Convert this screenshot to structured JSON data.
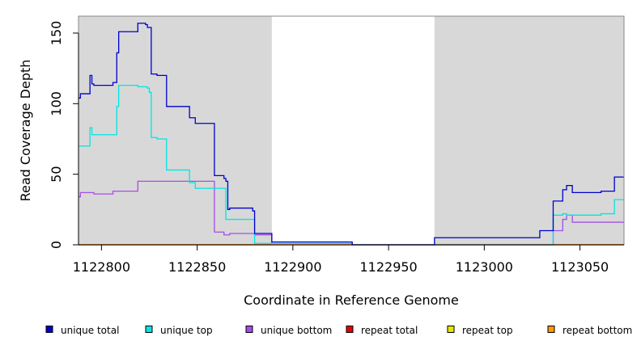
{
  "chart_data": {
    "type": "line",
    "step": true,
    "title": "",
    "xlabel": "Coordinate in Reference Genome",
    "ylabel": "Read Coverage Depth",
    "xlim": [
      1122788,
      1123073
    ],
    "ylim": [
      0,
      162
    ],
    "x_ticks": [
      1122800,
      1122850,
      1122900,
      1122950,
      1123000,
      1123050
    ],
    "x_tick_labels": [
      "1122800",
      "1122850",
      "1122900",
      "1122950",
      "1123000",
      "1123050"
    ],
    "y_ticks": [
      0,
      50,
      100,
      150
    ],
    "y_tick_labels": [
      "0",
      "50",
      "100",
      "150"
    ],
    "grid": false,
    "background_color": "#d8d8d8",
    "excluded_regions": [
      [
        1122788,
        1122889
      ],
      [
        1122974,
        1123073
      ]
    ],
    "legend_position": "bottom",
    "series": [
      {
        "name": "unique total",
        "color": "#0000cc",
        "points": [
          [
            1122788,
            104
          ],
          [
            1122789,
            107
          ],
          [
            1122794,
            120
          ],
          [
            1122795,
            114
          ],
          [
            1122796,
            113
          ],
          [
            1122806,
            115
          ],
          [
            1122808,
            136
          ],
          [
            1122809,
            151
          ],
          [
            1122819,
            157
          ],
          [
            1122823,
            156
          ],
          [
            1122824,
            154
          ],
          [
            1122826,
            121
          ],
          [
            1122829,
            120
          ],
          [
            1122834,
            98
          ],
          [
            1122846,
            90
          ],
          [
            1122849,
            86
          ],
          [
            1122859,
            49
          ],
          [
            1122864,
            47
          ],
          [
            1122865,
            45
          ],
          [
            1122866,
            25
          ],
          [
            1122867,
            26
          ],
          [
            1122879,
            24
          ],
          [
            1122880,
            8
          ],
          [
            1122889,
            2
          ],
          [
            1122931,
            0
          ],
          [
            1122974,
            5
          ],
          [
            1123029,
            10
          ],
          [
            1123036,
            31
          ],
          [
            1123041,
            39
          ],
          [
            1123043,
            42
          ],
          [
            1123046,
            37
          ],
          [
            1123061,
            38
          ],
          [
            1123068,
            48
          ],
          [
            1123073,
            48
          ]
        ]
      },
      {
        "name": "unique top",
        "color": "#00e5e5",
        "points": [
          [
            1122788,
            70
          ],
          [
            1122794,
            83
          ],
          [
            1122795,
            78
          ],
          [
            1122808,
            98
          ],
          [
            1122809,
            113
          ],
          [
            1122819,
            112
          ],
          [
            1122824,
            111
          ],
          [
            1122825,
            108
          ],
          [
            1122826,
            76
          ],
          [
            1122829,
            75
          ],
          [
            1122834,
            53
          ],
          [
            1122846,
            44
          ],
          [
            1122849,
            40
          ],
          [
            1122865,
            18
          ],
          [
            1122880,
            1
          ],
          [
            1122931,
            0
          ],
          [
            1123036,
            21
          ],
          [
            1123041,
            22
          ],
          [
            1123043,
            21
          ],
          [
            1123061,
            22
          ],
          [
            1123068,
            32
          ],
          [
            1123073,
            32
          ]
        ]
      },
      {
        "name": "unique bottom",
        "color": "#a64de6",
        "points": [
          [
            1122788,
            34
          ],
          [
            1122789,
            37
          ],
          [
            1122796,
            36
          ],
          [
            1122806,
            38
          ],
          [
            1122819,
            45
          ],
          [
            1122859,
            9
          ],
          [
            1122864,
            7
          ],
          [
            1122867,
            8
          ],
          [
            1122880,
            7
          ],
          [
            1122889,
            1
          ],
          [
            1122931,
            0
          ],
          [
            1123036,
            10
          ],
          [
            1123041,
            18
          ],
          [
            1123043,
            21
          ],
          [
            1123046,
            16
          ],
          [
            1123073,
            16
          ]
        ]
      },
      {
        "name": "repeat total",
        "color": "#e60000",
        "points": [
          [
            1122788,
            0
          ],
          [
            1123073,
            0
          ]
        ]
      },
      {
        "name": "repeat top",
        "color": "#e6e600",
        "points": [
          [
            1122788,
            0
          ],
          [
            1123073,
            0
          ]
        ]
      },
      {
        "name": "repeat bottom",
        "color": "#ff9900",
        "points": [
          [
            1122788,
            0
          ],
          [
            1123073,
            0
          ]
        ]
      }
    ]
  }
}
